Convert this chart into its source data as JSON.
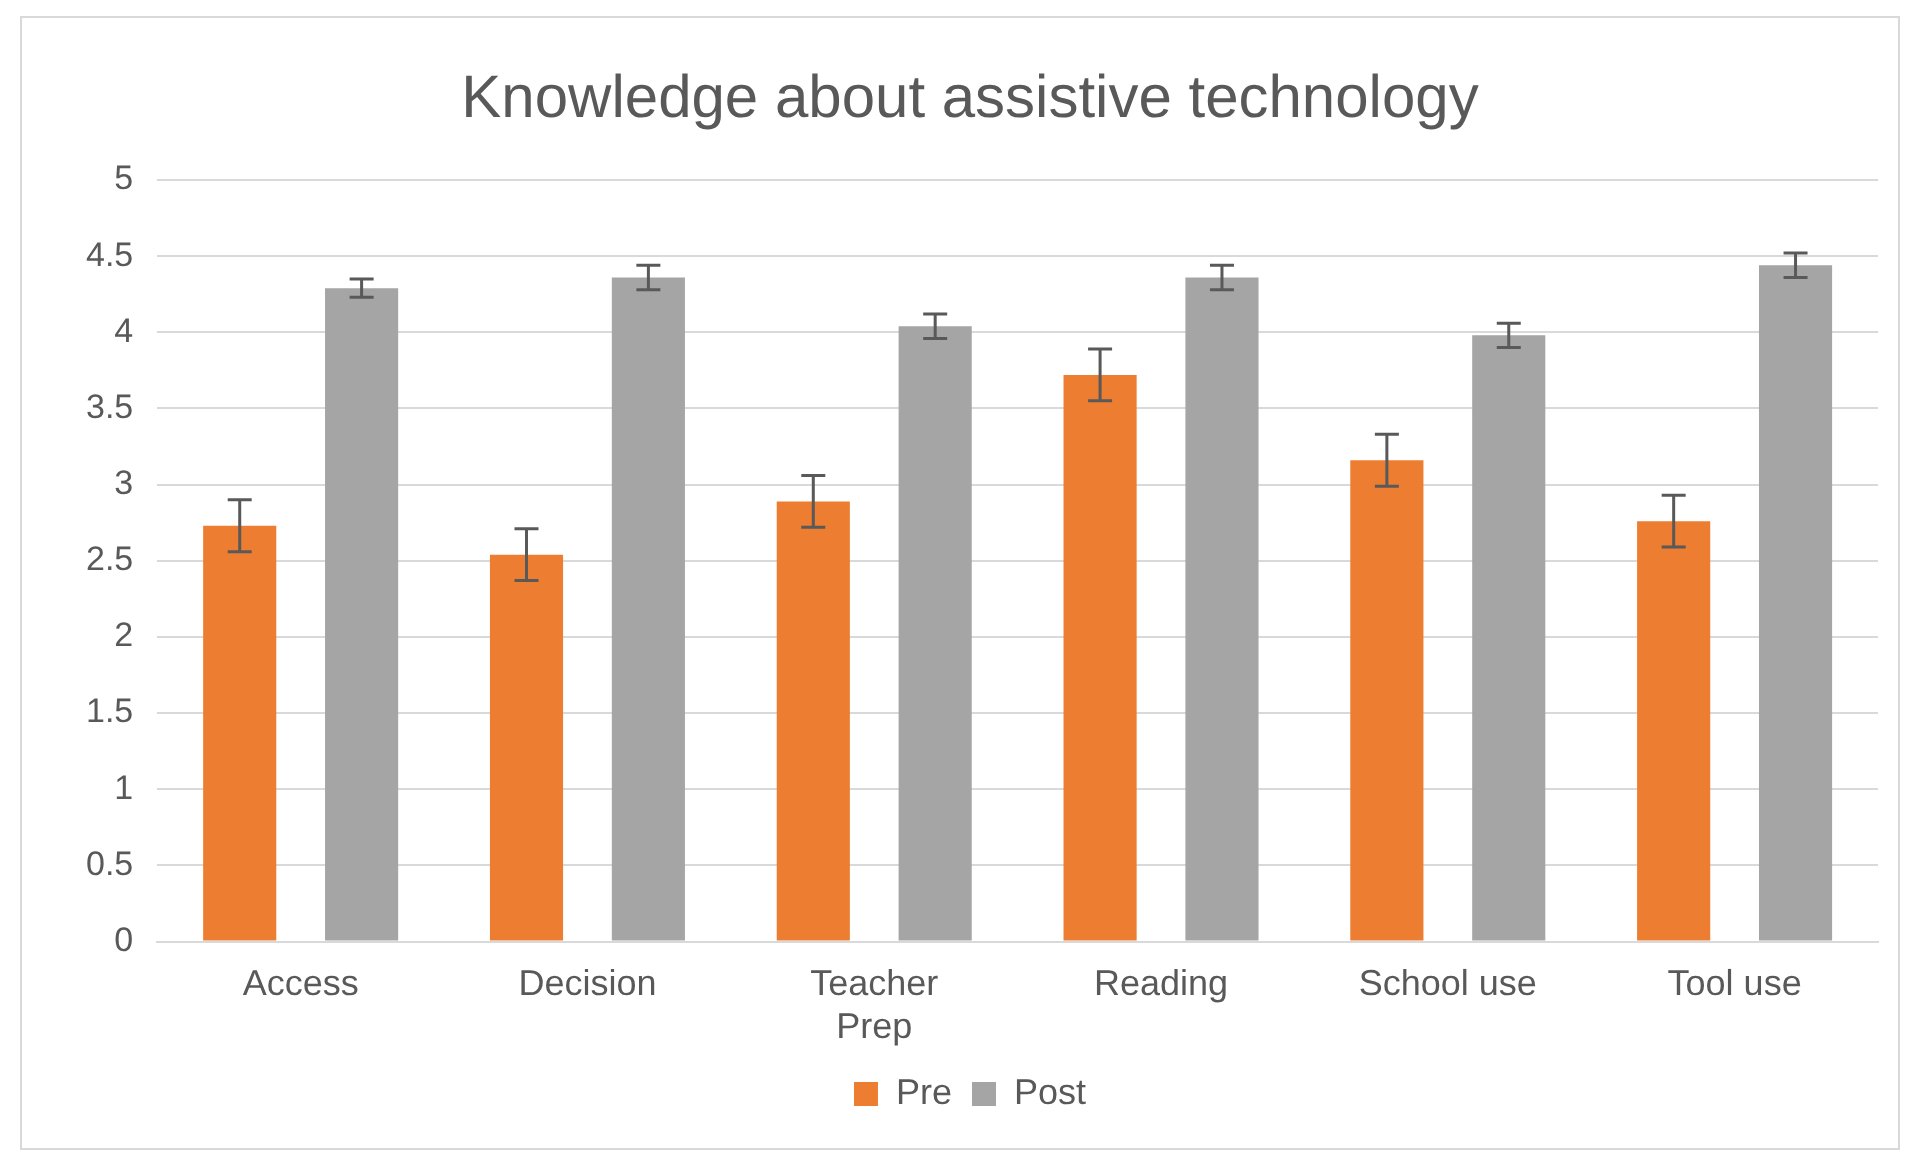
{
  "chart_data": {
    "type": "bar",
    "title": "Knowledge about assistive technology",
    "categories": [
      "Access",
      "Decision",
      "Teacher Prep",
      "Reading",
      "School use",
      "Tool use"
    ],
    "series": [
      {
        "name": "Pre",
        "color": "#ed7d31",
        "values": [
          2.73,
          2.54,
          2.89,
          3.72,
          3.16,
          2.76
        ],
        "errors": [
          0.17,
          0.17,
          0.17,
          0.17,
          0.17,
          0.17
        ]
      },
      {
        "name": "Post",
        "color": "#a5a5a5",
        "values": [
          4.29,
          4.36,
          4.04,
          4.36,
          3.98,
          4.44
        ],
        "errors": [
          0.06,
          0.08,
          0.08,
          0.08,
          0.08,
          0.08
        ]
      }
    ],
    "ylim": [
      0,
      5
    ],
    "yticks": [
      0,
      0.5,
      1,
      1.5,
      2,
      2.5,
      3,
      3.5,
      4,
      4.5,
      5
    ],
    "grid": "y",
    "legend": "bottom"
  }
}
